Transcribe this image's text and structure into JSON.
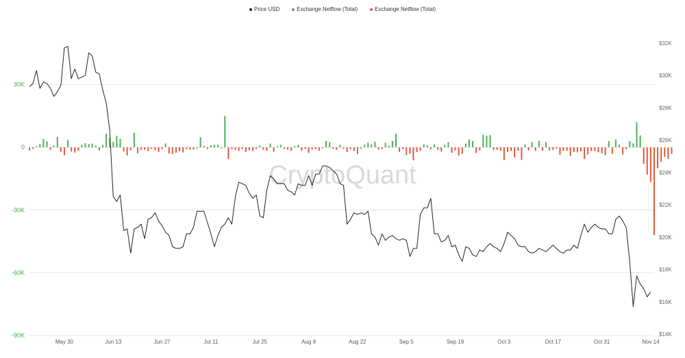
{
  "colors": {
    "price": "#222222",
    "inflow_positive": "#4caf50",
    "outflow_negative": "#e05a3a",
    "left_axis": "#3fae3f",
    "right_axis": "#666666",
    "grid": "#e6e6e6",
    "watermark": "#d8d8d8"
  },
  "watermark": "CryptoQuant",
  "chart_data": {
    "type": "line",
    "legend": [
      {
        "name": "Price USD",
        "color": "#222222"
      },
      {
        "name": "Exchange Netflow (Total)",
        "color": "#4caf50"
      },
      {
        "name": "Exchange Netflow (Total)",
        "color": "#e05a3a"
      }
    ],
    "legend_position": "top-center",
    "grid": true,
    "x": {
      "start_date": "2022-05-20",
      "end_date": "2022-11-15",
      "tick_labels": [
        "May 30",
        "Jun 13",
        "Jun 27",
        "Jul 11",
        "Jul 25",
        "Aug 8",
        "Aug 22",
        "Sep 5",
        "Sep 19",
        "Oct 3",
        "Oct 17",
        "Oct 31",
        "Nov 14"
      ],
      "tick_dates": [
        "2022-05-30",
        "2022-06-13",
        "2022-06-27",
        "2022-07-11",
        "2022-07-25",
        "2022-08-08",
        "2022-08-22",
        "2022-09-05",
        "2022-09-19",
        "2022-10-03",
        "2022-10-17",
        "2022-10-31",
        "2022-11-14"
      ]
    },
    "y_left": {
      "ylim": [
        -90000,
        60000
      ],
      "ticks": [
        30000,
        0,
        -30000,
        -60000,
        -90000
      ],
      "tick_labels": [
        "30K",
        "0",
        "-30K",
        "-60K",
        "-90K"
      ]
    },
    "y_right": {
      "ylim": [
        14000,
        32000
      ],
      "ticks": [
        14000,
        16000,
        18000,
        20000,
        22000,
        24000,
        26000,
        28000,
        30000,
        32000
      ],
      "tick_labels": [
        "$14K",
        "$16K",
        "$18K",
        "$20K",
        "$22K",
        "$24K",
        "$26K",
        "$28K",
        "$30K",
        "$32K"
      ]
    },
    "series": [
      {
        "name": "Price USD",
        "axis": "right",
        "points": [
          [
            "2022-05-20",
            29300
          ],
          [
            "2022-05-21",
            29500
          ],
          [
            "2022-05-22",
            30300
          ],
          [
            "2022-05-23",
            29200
          ],
          [
            "2022-05-24",
            29600
          ],
          [
            "2022-05-25",
            29500
          ],
          [
            "2022-05-26",
            29200
          ],
          [
            "2022-05-27",
            28700
          ],
          [
            "2022-05-28",
            29000
          ],
          [
            "2022-05-29",
            29400
          ],
          [
            "2022-05-30",
            31700
          ],
          [
            "2022-05-31",
            31800
          ],
          [
            "2022-06-01",
            29800
          ],
          [
            "2022-06-02",
            30400
          ],
          [
            "2022-06-03",
            29800
          ],
          [
            "2022-06-04",
            29900
          ],
          [
            "2022-06-05",
            30000
          ],
          [
            "2022-06-06",
            31400
          ],
          [
            "2022-06-07",
            31200
          ],
          [
            "2022-06-08",
            30200
          ],
          [
            "2022-06-09",
            30100
          ],
          [
            "2022-06-10",
            29100
          ],
          [
            "2022-06-11",
            28300
          ],
          [
            "2022-06-12",
            26600
          ],
          [
            "2022-06-13",
            22500
          ],
          [
            "2022-06-14",
            22200
          ],
          [
            "2022-06-15",
            22600
          ],
          [
            "2022-06-16",
            20400
          ],
          [
            "2022-06-17",
            20500
          ],
          [
            "2022-06-18",
            19000
          ],
          [
            "2022-06-19",
            20500
          ],
          [
            "2022-06-20",
            20600
          ],
          [
            "2022-06-21",
            20800
          ],
          [
            "2022-06-22",
            19900
          ],
          [
            "2022-06-23",
            21100
          ],
          [
            "2022-06-24",
            21200
          ],
          [
            "2022-06-25",
            21500
          ],
          [
            "2022-06-26",
            21000
          ],
          [
            "2022-06-27",
            20700
          ],
          [
            "2022-06-28",
            20300
          ],
          [
            "2022-06-29",
            20100
          ],
          [
            "2022-06-30",
            19400
          ],
          [
            "2022-07-01",
            19300
          ],
          [
            "2022-07-02",
            19300
          ],
          [
            "2022-07-03",
            19400
          ],
          [
            "2022-07-04",
            20200
          ],
          [
            "2022-07-05",
            20200
          ],
          [
            "2022-07-06",
            20600
          ],
          [
            "2022-07-07",
            21600
          ],
          [
            "2022-07-08",
            21600
          ],
          [
            "2022-07-09",
            21600
          ],
          [
            "2022-07-10",
            20900
          ],
          [
            "2022-07-11",
            20200
          ],
          [
            "2022-07-12",
            19400
          ],
          [
            "2022-07-13",
            20100
          ],
          [
            "2022-07-14",
            20600
          ],
          [
            "2022-07-15",
            20800
          ],
          [
            "2022-07-16",
            21200
          ],
          [
            "2022-07-17",
            20800
          ],
          [
            "2022-07-18",
            22500
          ],
          [
            "2022-07-19",
            23400
          ],
          [
            "2022-07-20",
            23300
          ],
          [
            "2022-07-21",
            23200
          ],
          [
            "2022-07-22",
            22700
          ],
          [
            "2022-07-23",
            22400
          ],
          [
            "2022-07-24",
            22600
          ],
          [
            "2022-07-25",
            21300
          ],
          [
            "2022-07-26",
            21200
          ],
          [
            "2022-07-27",
            22900
          ],
          [
            "2022-07-28",
            23800
          ],
          [
            "2022-07-29",
            23600
          ],
          [
            "2022-07-30",
            23300
          ],
          [
            "2022-07-31",
            23300
          ],
          [
            "2022-08-01",
            23300
          ],
          [
            "2022-08-02",
            22900
          ],
          [
            "2022-08-03",
            22800
          ],
          [
            "2022-08-04",
            22600
          ],
          [
            "2022-08-05",
            23300
          ],
          [
            "2022-08-06",
            23200
          ],
          [
            "2022-08-07",
            23200
          ],
          [
            "2022-08-08",
            23800
          ],
          [
            "2022-08-09",
            23200
          ],
          [
            "2022-08-10",
            23900
          ],
          [
            "2022-08-11",
            23900
          ],
          [
            "2022-08-12",
            24400
          ],
          [
            "2022-08-13",
            24400
          ],
          [
            "2022-08-14",
            24300
          ],
          [
            "2022-08-15",
            24100
          ],
          [
            "2022-08-16",
            23900
          ],
          [
            "2022-08-17",
            23300
          ],
          [
            "2022-08-18",
            23200
          ],
          [
            "2022-08-19",
            20800
          ],
          [
            "2022-08-20",
            21100
          ],
          [
            "2022-08-21",
            21500
          ],
          [
            "2022-08-22",
            21400
          ],
          [
            "2022-08-23",
            21500
          ],
          [
            "2022-08-24",
            21400
          ],
          [
            "2022-08-25",
            21600
          ],
          [
            "2022-08-26",
            20200
          ],
          [
            "2022-08-27",
            20000
          ],
          [
            "2022-08-28",
            19500
          ],
          [
            "2022-08-29",
            20200
          ],
          [
            "2022-08-30",
            19800
          ],
          [
            "2022-08-31",
            20000
          ],
          [
            "2022-09-01",
            20100
          ],
          [
            "2022-09-02",
            19900
          ],
          [
            "2022-09-03",
            19800
          ],
          [
            "2022-09-04",
            19900
          ],
          [
            "2022-09-05",
            19800
          ],
          [
            "2022-09-06",
            18800
          ],
          [
            "2022-09-07",
            19300
          ],
          [
            "2022-09-08",
            19300
          ],
          [
            "2022-09-09",
            21400
          ],
          [
            "2022-09-10",
            21800
          ],
          [
            "2022-09-11",
            21800
          ],
          [
            "2022-09-12",
            22400
          ],
          [
            "2022-09-13",
            20200
          ],
          [
            "2022-09-14",
            20200
          ],
          [
            "2022-09-15",
            19700
          ],
          [
            "2022-09-16",
            19800
          ],
          [
            "2022-09-17",
            20100
          ],
          [
            "2022-09-18",
            19400
          ],
          [
            "2022-09-19",
            19500
          ],
          [
            "2022-09-20",
            18900
          ],
          [
            "2022-09-21",
            18500
          ],
          [
            "2022-09-22",
            19400
          ],
          [
            "2022-09-23",
            19300
          ],
          [
            "2022-09-24",
            18900
          ],
          [
            "2022-09-25",
            18800
          ],
          [
            "2022-09-26",
            19200
          ],
          [
            "2022-09-27",
            19100
          ],
          [
            "2022-09-28",
            19400
          ],
          [
            "2022-09-29",
            19600
          ],
          [
            "2022-09-30",
            19400
          ],
          [
            "2022-10-01",
            19300
          ],
          [
            "2022-10-02",
            19100
          ],
          [
            "2022-10-03",
            19600
          ],
          [
            "2022-10-04",
            20300
          ],
          [
            "2022-10-05",
            20100
          ],
          [
            "2022-10-06",
            19900
          ],
          [
            "2022-10-07",
            19500
          ],
          [
            "2022-10-08",
            19400
          ],
          [
            "2022-10-09",
            19400
          ],
          [
            "2022-10-10",
            19100
          ],
          [
            "2022-10-11",
            19000
          ],
          [
            "2022-10-12",
            19100
          ],
          [
            "2022-10-13",
            19300
          ],
          [
            "2022-10-14",
            19200
          ],
          [
            "2022-10-15",
            19100
          ],
          [
            "2022-10-16",
            19300
          ],
          [
            "2022-10-17",
            19500
          ],
          [
            "2022-10-18",
            19300
          ],
          [
            "2022-10-19",
            19100
          ],
          [
            "2022-10-20",
            19000
          ],
          [
            "2022-10-21",
            19200
          ],
          [
            "2022-10-22",
            19200
          ],
          [
            "2022-10-23",
            19500
          ],
          [
            "2022-10-24",
            19300
          ],
          [
            "2022-10-25",
            20100
          ],
          [
            "2022-10-26",
            20800
          ],
          [
            "2022-10-27",
            20300
          ],
          [
            "2022-10-28",
            20600
          ],
          [
            "2022-10-29",
            20800
          ],
          [
            "2022-10-30",
            20600
          ],
          [
            "2022-10-31",
            20500
          ],
          [
            "2022-11-01",
            20500
          ],
          [
            "2022-11-02",
            20200
          ],
          [
            "2022-11-03",
            20200
          ],
          [
            "2022-11-04",
            21100
          ],
          [
            "2022-11-05",
            21300
          ],
          [
            "2022-11-06",
            21000
          ],
          [
            "2022-11-07",
            20600
          ],
          [
            "2022-11-08",
            18500
          ],
          [
            "2022-11-09",
            15700
          ],
          [
            "2022-11-10",
            17600
          ],
          [
            "2022-11-11",
            17100
          ],
          [
            "2022-11-12",
            16800
          ],
          [
            "2022-11-13",
            16300
          ],
          [
            "2022-11-14",
            16600
          ]
        ]
      },
      {
        "name": "Exchange Netflow (Total)",
        "axis": "left",
        "type": "bar",
        "values": [
          -1500,
          -800,
          500,
          1500,
          4000,
          2800,
          -1200,
          800,
          5000,
          -2200,
          -3800,
          3500,
          -2000,
          -2500,
          -1600,
          1200,
          2000,
          1600,
          1800,
          900,
          -1500,
          1200,
          6500,
          4500,
          2600,
          5500,
          4000,
          -2000,
          -3900,
          -1500,
          7000,
          -2800,
          -1300,
          -1200,
          -1800,
          -800,
          -1400,
          -2200,
          -900,
          1800,
          -3000,
          -3200,
          -2600,
          -1800,
          -2500,
          -900,
          -1200,
          -1000,
          -500,
          4800,
          700,
          -800,
          1000,
          1200,
          1200,
          -500,
          15000,
          -5500,
          -900,
          -1200,
          -1700,
          -800,
          -2200,
          -1400,
          -1800,
          -800,
          900,
          -1200,
          -1700,
          1800,
          -2100,
          600,
          1200,
          -800,
          -1200,
          -1700,
          600,
          1200,
          -1600,
          -800,
          -2700,
          -1100,
          -900,
          -1600,
          -500,
          3100,
          2400,
          -800,
          -1200,
          1200,
          -700,
          -2200,
          -1000,
          -1800,
          -3200,
          -700,
          1300,
          2200,
          1400,
          2600,
          -1100,
          -900,
          2200,
          800,
          3000,
          6500,
          -2200,
          -900,
          -3700,
          -3000,
          -6200,
          -2300,
          -1600,
          1400,
          1000,
          -1000,
          1400,
          -1200,
          -2000,
          1200,
          2400,
          -2600,
          -1500,
          -4000,
          -3100,
          1800,
          3800,
          3000,
          -2800,
          -1500,
          6000,
          5500,
          5800,
          -1300,
          -1200,
          -1700,
          -6000,
          -2200,
          -1800,
          -4800,
          -1700,
          -6000,
          1300,
          -1500,
          2500,
          -1700,
          3100,
          -1600,
          2500,
          -1500,
          -1300,
          -700,
          -3600,
          -1700,
          -1700,
          -4100,
          -2300,
          -2400,
          -1900,
          -5600,
          -3400,
          -1800,
          -1800,
          -2400,
          -2800,
          -3800,
          3000,
          -3100,
          3800,
          1300,
          -3400,
          -900,
          2900,
          1900,
          12000,
          5700,
          -8000,
          -13000,
          -16500,
          -42000,
          -10000,
          -7000,
          -4500,
          -5500,
          -3200
        ],
        "start_date": "2022-05-20"
      }
    ]
  }
}
